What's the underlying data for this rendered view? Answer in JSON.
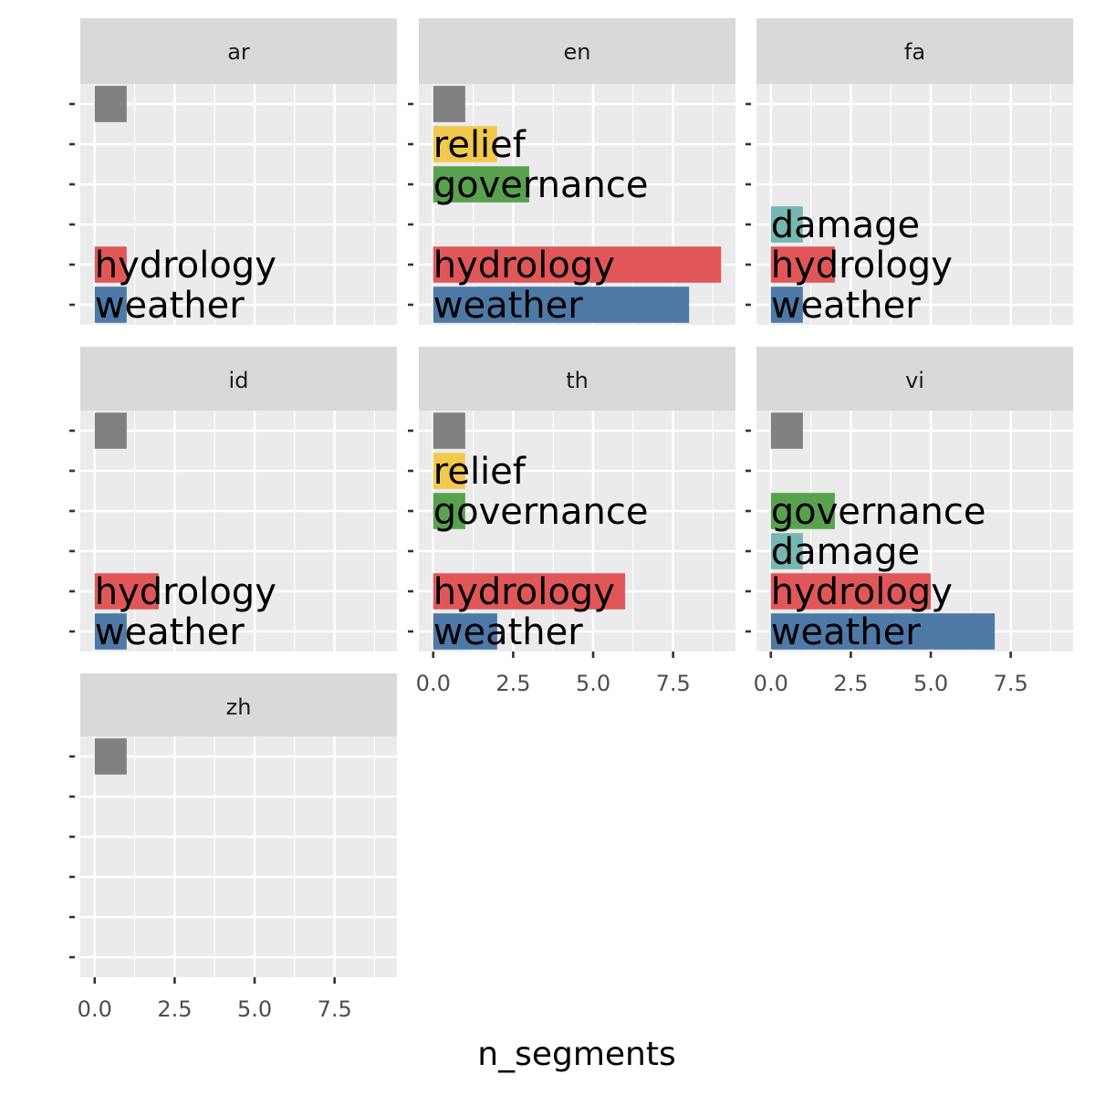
{
  "chart_data": {
    "type": "bar",
    "orientation": "horizontal",
    "facet_layout": "wrap, 3 columns",
    "xlabel": "n_segments",
    "ylabel": "",
    "xlim": [
      -0.45,
      9.45
    ],
    "x_ticks": [
      "0.0",
      "2.5",
      "5.0",
      "7.5"
    ],
    "x_tick_values": [
      0,
      2.5,
      5,
      7.5
    ],
    "grid": true,
    "legend": "none",
    "categories": [
      "",
      "relief",
      "governance",
      "damage",
      "hydrology",
      "weather"
    ],
    "category_colors": {
      "": "#808080",
      "relief": "#F2C94C",
      "governance": "#59A14F",
      "damage": "#76B7B2",
      "hydrology": "#E15759",
      "weather": "#4E79A7"
    },
    "panels": [
      {
        "facet": "ar",
        "values": [
          1,
          0,
          0,
          0,
          1,
          1
        ]
      },
      {
        "facet": "en",
        "values": [
          1,
          2,
          3,
          0,
          9,
          8
        ]
      },
      {
        "facet": "fa",
        "values": [
          0,
          0,
          0,
          1,
          2,
          1
        ]
      },
      {
        "facet": "id",
        "values": [
          1,
          0,
          0,
          0,
          2,
          1
        ]
      },
      {
        "facet": "th",
        "values": [
          1,
          1,
          1,
          0,
          6,
          2
        ]
      },
      {
        "facet": "vi",
        "values": [
          1,
          0,
          2,
          1,
          5,
          7
        ]
      },
      {
        "facet": "zh",
        "values": [
          1,
          0,
          0,
          0,
          0,
          0
        ]
      }
    ]
  }
}
